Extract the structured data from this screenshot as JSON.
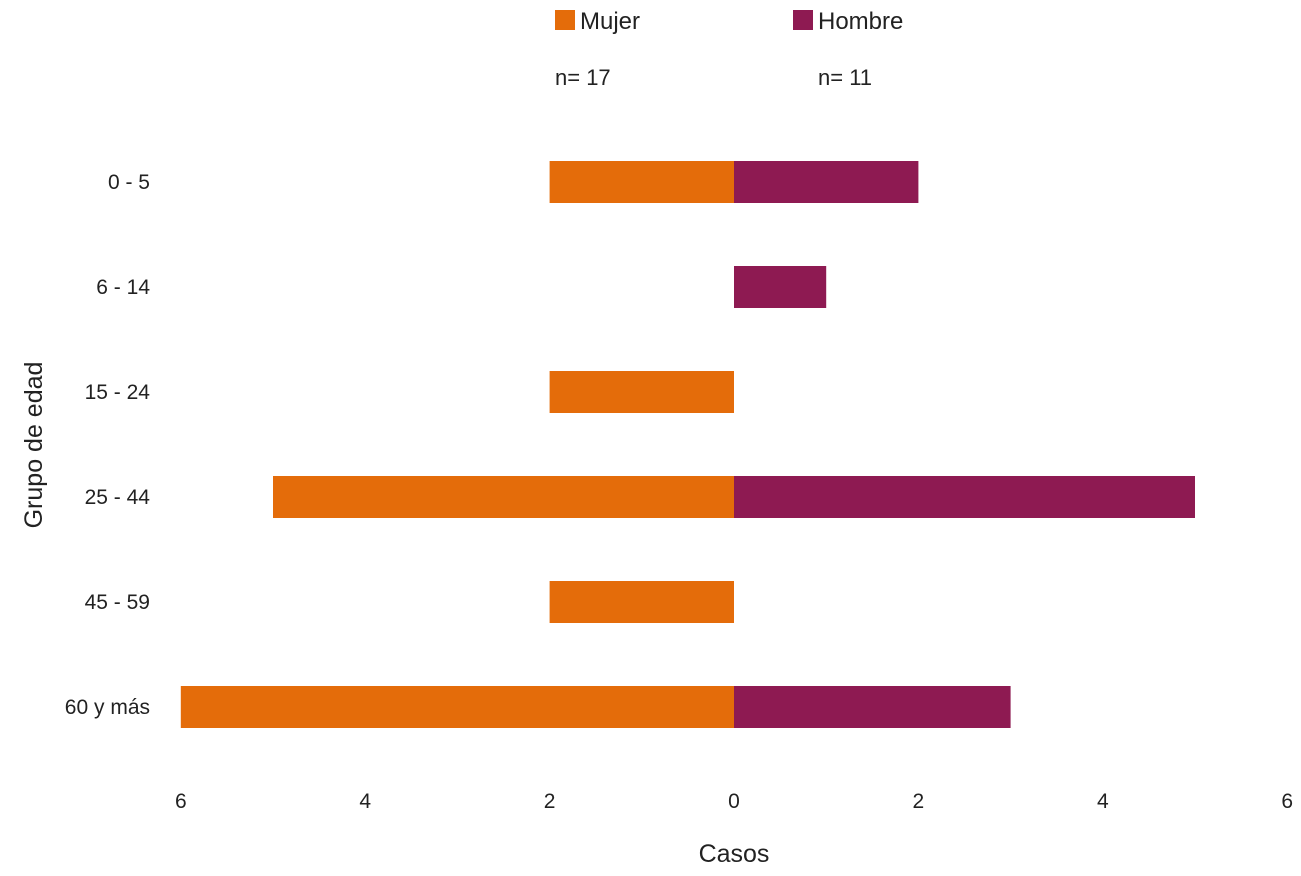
{
  "chart_data": {
    "type": "bar",
    "orientation": "horizontal",
    "layout": "population-pyramid",
    "categories": [
      "0 - 5",
      "6 - 14",
      "15 - 24",
      "25 - 44",
      "45 - 59",
      "60 y más"
    ],
    "series": [
      {
        "name": "Mujer",
        "n_label": "n= 17",
        "color": "#E46C0A",
        "side": "left",
        "values": [
          2,
          0,
          2,
          5,
          2,
          6
        ]
      },
      {
        "name": "Hombre",
        "n_label": "n= 11",
        "color": "#8E1A52",
        "side": "right",
        "values": [
          2,
          1,
          0,
          5,
          0,
          3
        ]
      }
    ],
    "xlabel": "Casos",
    "ylabel": "Grupo de edad",
    "x_ticks": [
      "6",
      "4",
      "2",
      "0",
      "2",
      "4",
      "6"
    ],
    "xlim": [
      -6,
      6
    ],
    "grid": false,
    "legend": "top-center"
  }
}
